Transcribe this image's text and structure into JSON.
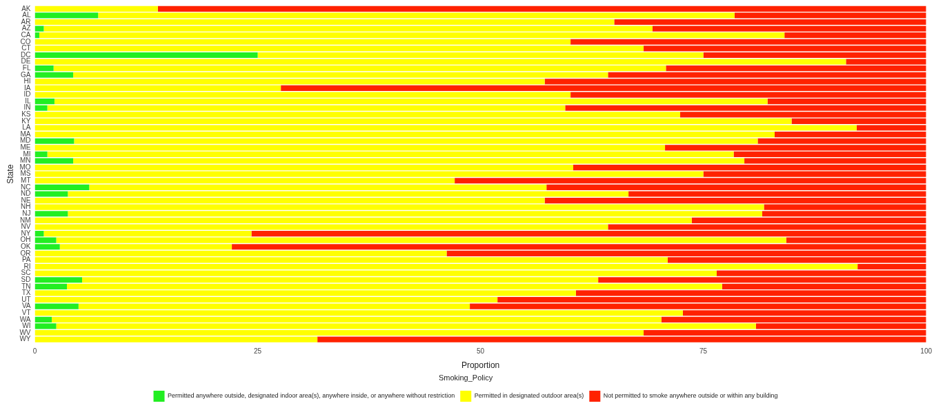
{
  "chart_data": {
    "type": "bar",
    "orientation": "horizontal",
    "stacked": true,
    "xlabel": "Proportion",
    "ylabel": "State",
    "legend_title": "Smoking_Policy",
    "legend": "bottom",
    "grid": false,
    "categories": [
      "AK",
      "AL",
      "AR",
      "AZ",
      "CA",
      "CO",
      "CT",
      "DC",
      "DE",
      "FL",
      "GA",
      "HI",
      "IA",
      "ID",
      "IL",
      "IN",
      "KS",
      "KY",
      "LA",
      "MA",
      "MD",
      "ME",
      "MI",
      "MN",
      "MO",
      "MS",
      "MT",
      "NC",
      "ND",
      "NE",
      "NH",
      "NJ",
      "NM",
      "NV",
      "NY",
      "OH",
      "OK",
      "OR",
      "PA",
      "RI",
      "SC",
      "SD",
      "TN",
      "TX",
      "UT",
      "VA",
      "VT",
      "WA",
      "WI",
      "WV",
      "WY"
    ],
    "xlim": [
      0,
      100
    ],
    "xticks": [
      0,
      25,
      50,
      75,
      100
    ],
    "series": [
      {
        "name": "Permitted anywhere outside, designated indoor area(s), anywhere inside, or anywhere without restriction",
        "color": "#22ee22",
        "values": [
          0,
          7.1,
          0,
          1.0,
          0.5,
          0,
          0,
          25.0,
          0,
          2.1,
          4.3,
          0,
          0,
          0,
          2.2,
          1.4,
          0,
          0,
          0,
          0,
          4.4,
          0,
          1.4,
          4.3,
          0,
          0,
          0,
          6.1,
          3.7,
          0,
          0,
          3.7,
          0,
          0,
          1.0,
          2.4,
          2.8,
          0,
          0,
          0,
          0,
          5.3,
          3.6,
          0,
          0,
          4.9,
          0,
          1.9,
          2.4,
          0,
          0
        ]
      },
      {
        "name": "Permitted in designated outdoor area(s)",
        "color": "#ffff00",
        "values": [
          13.8,
          71.4,
          65.0,
          68.3,
          83.6,
          60.1,
          68.3,
          50.0,
          91.0,
          68.7,
          60.0,
          57.2,
          27.6,
          60.1,
          80.0,
          58.1,
          72.4,
          84.9,
          92.2,
          83.0,
          76.7,
          70.7,
          77.0,
          75.3,
          60.4,
          75.0,
          47.1,
          51.3,
          62.9,
          57.2,
          81.8,
          77.9,
          73.7,
          64.3,
          23.3,
          81.9,
          19.3,
          46.2,
          71.0,
          92.3,
          76.5,
          57.9,
          73.5,
          60.7,
          51.9,
          43.9,
          72.7,
          68.4,
          78.5,
          68.3,
          31.7
        ]
      },
      {
        "name": "Not permitted to smoke anywhere outside or within any building",
        "color": "#ff2200",
        "values": [
          86.2,
          21.5,
          35.0,
          30.7,
          15.9,
          39.9,
          31.7,
          25.0,
          9.0,
          29.2,
          35.7,
          42.8,
          72.4,
          39.9,
          17.8,
          40.5,
          27.6,
          15.1,
          7.8,
          17.0,
          18.9,
          29.3,
          21.6,
          20.4,
          39.6,
          25.0,
          52.9,
          42.6,
          33.4,
          42.8,
          18.2,
          18.4,
          26.3,
          35.7,
          75.7,
          15.7,
          77.9,
          53.8,
          29.0,
          7.7,
          23.5,
          36.8,
          22.9,
          39.3,
          48.1,
          51.2,
          27.3,
          29.7,
          19.1,
          31.7,
          68.3
        ]
      }
    ]
  }
}
